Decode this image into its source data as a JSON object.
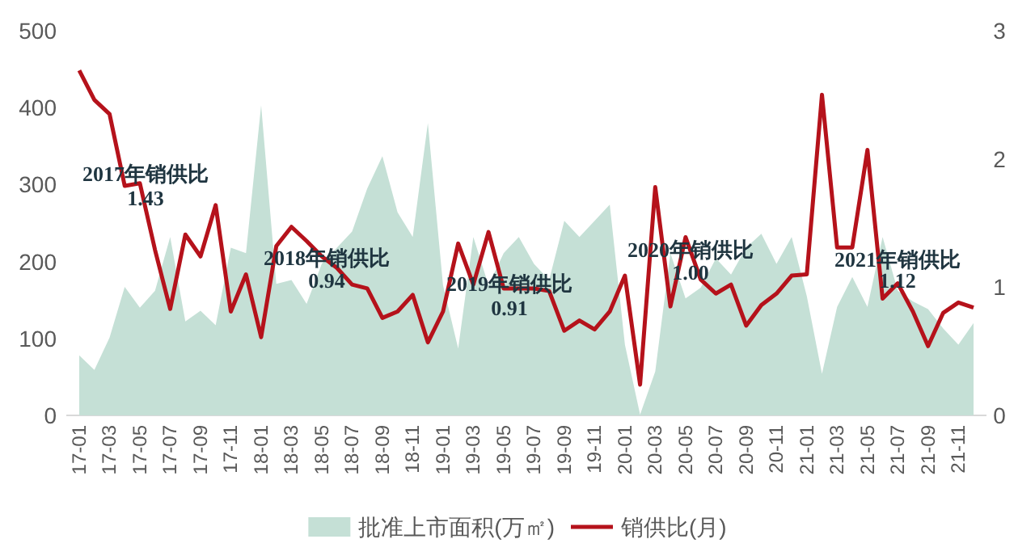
{
  "chart_data": {
    "type": "area",
    "categories": [
      "17-01",
      null,
      "17-03",
      null,
      "17-05",
      null,
      "17-07",
      null,
      "17-09",
      null,
      "17-11",
      null,
      "18-01",
      null,
      "18-03",
      null,
      "18-05",
      null,
      "18-07",
      null,
      "18-09",
      null,
      "18-11",
      null,
      "19-01",
      null,
      "19-03",
      null,
      "19-05",
      null,
      "19-07",
      null,
      "19-09",
      null,
      "19-11",
      null,
      "20-01",
      null,
      "20-03",
      null,
      "20-05",
      null,
      "20-07",
      null,
      "20-09",
      null,
      "20-11",
      null,
      "21-01",
      null,
      "21-03",
      null,
      "21-05",
      null,
      "21-07",
      null,
      "21-09",
      null,
      "21-11",
      null
    ],
    "series": [
      {
        "name": "批准上市面积(万㎡)",
        "color": "#c5e0d6",
        "values": [
          78,
          59,
          101,
          167,
          140,
          162,
          232,
          122,
          136,
          117,
          218,
          211,
          403,
          171,
          176,
          145,
          197,
          218,
          239,
          295,
          337,
          264,
          232,
          380,
          169,
          87,
          232,
          169,
          211,
          232,
          197,
          176,
          253,
          232,
          253,
          274,
          92,
          1,
          57,
          211,
          152,
          166,
          204,
          183,
          218,
          236,
          197,
          232,
          155,
          54,
          141,
          180,
          141,
          232,
          162,
          148,
          138,
          113,
          92,
          120
        ]
      },
      {
        "name": "销供比(月)",
        "type": "line",
        "axis": "y2",
        "color": "#b5121b",
        "values": [
          2.69,
          2.46,
          2.35,
          1.79,
          1.81,
          1.29,
          0.83,
          1.41,
          1.24,
          1.64,
          0.81,
          1.1,
          0.61,
          1.32,
          1.47,
          1.36,
          1.24,
          1.15,
          1.02,
          0.99,
          0.76,
          0.81,
          0.94,
          0.57,
          0.81,
          1.34,
          1.02,
          1.43,
          0.99,
          0.99,
          0.99,
          0.97,
          0.66,
          0.74,
          0.67,
          0.81,
          1.09,
          0.24,
          1.78,
          0.85,
          1.39,
          1.06,
          0.95,
          1.02,
          0.7,
          0.86,
          0.95,
          1.09,
          1.1,
          2.5,
          1.31,
          1.31,
          2.07,
          0.91,
          1.03,
          0.81,
          0.54,
          0.8,
          0.88,
          0.84
        ]
      }
    ],
    "ylim": [
      0,
      500
    ],
    "yticks": [
      0,
      100,
      200,
      300,
      400,
      500
    ],
    "y2lim": [
      0,
      3
    ],
    "y2ticks": [
      0,
      1,
      2,
      3
    ],
    "legend": "bottom",
    "grid": false,
    "annotations": [
      "2017年销供比",
      "1.43",
      "2018年销供比",
      "0.94",
      "2019年销供比",
      "0.91",
      "2020年销供比",
      "1.00",
      "2021年销供比",
      "1.12"
    ]
  }
}
